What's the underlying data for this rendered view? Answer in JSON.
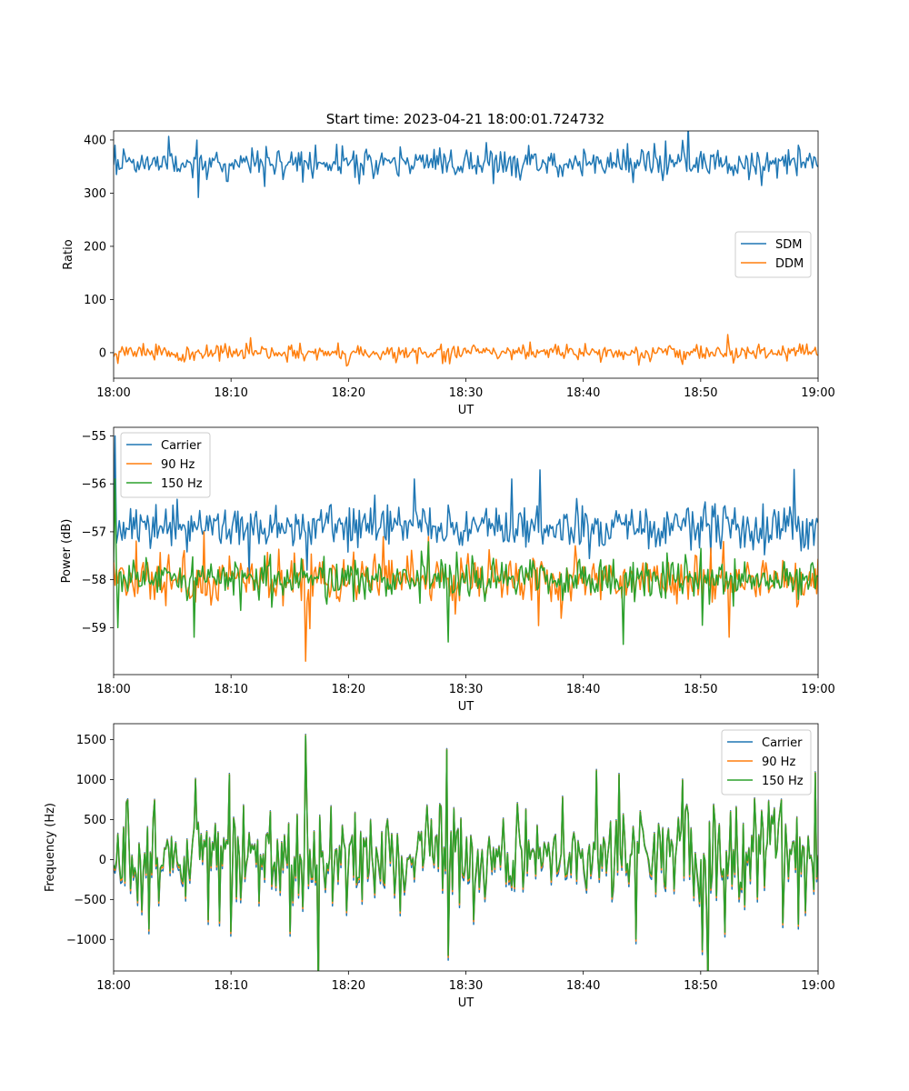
{
  "figure": {
    "title": "Start time: 2023-04-21 18:00:01.724732"
  },
  "chart_data": [
    {
      "type": "line",
      "xlabel": "UT",
      "ylabel": "Ratio",
      "xlim": [
        0,
        60
      ],
      "ylim": [
        -48,
        417
      ],
      "x_ticks": [
        {
          "value": 0,
          "label": "18:00"
        },
        {
          "value": 10,
          "label": "18:10"
        },
        {
          "value": 20,
          "label": "18:20"
        },
        {
          "value": 30,
          "label": "18:30"
        },
        {
          "value": 40,
          "label": "18:40"
        },
        {
          "value": 50,
          "label": "18:50"
        },
        {
          "value": 60,
          "label": "19:00"
        }
      ],
      "y_ticks": [
        {
          "value": 0,
          "label": "0"
        },
        {
          "value": 100,
          "label": "100"
        },
        {
          "value": 200,
          "label": "200"
        },
        {
          "value": 300,
          "label": "300"
        },
        {
          "value": 400,
          "label": "400"
        }
      ],
      "legend_position": "center-right",
      "grid": false,
      "series": [
        {
          "name": "SDM",
          "color": "#1f77b4",
          "center": 357,
          "spread": 14,
          "spikes": [
            [
              0.1,
              390
            ],
            [
              0.3,
              335
            ],
            [
              32.3,
              318
            ],
            [
              31.7,
              395
            ],
            [
              58.3,
              390
            ],
            [
              44.2,
              320
            ],
            [
              9.7,
              322
            ]
          ],
          "seed": 11
        },
        {
          "name": "DDM",
          "color": "#ff7f0e",
          "center": 0,
          "spread": 7,
          "spikes": [
            [
              11.7,
              28
            ],
            [
              52.3,
              34
            ],
            [
              19.8,
              -25
            ],
            [
              48.4,
              -22
            ],
            [
              0.4,
              -20
            ]
          ],
          "seed": 23
        }
      ]
    },
    {
      "type": "line",
      "xlabel": "UT",
      "ylabel": "Power (dB)",
      "xlim": [
        0,
        60
      ],
      "ylim": [
        -59.98,
        -54.82
      ],
      "x_ticks": [
        {
          "value": 0,
          "label": "18:00"
        },
        {
          "value": 10,
          "label": "18:10"
        },
        {
          "value": 20,
          "label": "18:20"
        },
        {
          "value": 30,
          "label": "18:30"
        },
        {
          "value": 40,
          "label": "18:40"
        },
        {
          "value": 50,
          "label": "18:50"
        },
        {
          "value": 60,
          "label": "19:00"
        }
      ],
      "y_ticks": [
        {
          "value": -59,
          "label": "−59"
        },
        {
          "value": -58,
          "label": "−58"
        },
        {
          "value": -57,
          "label": "−57"
        },
        {
          "value": -56,
          "label": "−56"
        },
        {
          "value": -55,
          "label": "−55"
        }
      ],
      "legend_position": "upper-left",
      "grid": false,
      "series": [
        {
          "name": "Carrier",
          "color": "#1f77b4",
          "center": -56.9,
          "spread": 0.22,
          "spikes": [
            [
              0.1,
              -55.0
            ],
            [
              33.9,
              -55.9
            ],
            [
              58.0,
              -55.7
            ],
            [
              25.6,
              -55.9
            ],
            [
              11.6,
              -57.9
            ],
            [
              16.5,
              -57.8
            ]
          ],
          "seed": 37
        },
        {
          "name": "90 Hz",
          "color": "#ff7f0e",
          "center": -58.0,
          "spread": 0.25,
          "spikes": [
            [
              16.4,
              -59.7
            ],
            [
              52.4,
              -59.2
            ],
            [
              7.7,
              -57.0
            ],
            [
              26.8,
              -57.1
            ]
          ],
          "seed": 41
        },
        {
          "name": "150 Hz",
          "color": "#2ca02c",
          "center": -57.95,
          "spread": 0.22,
          "spikes": [
            [
              0.1,
              -55.9
            ],
            [
              43.4,
              -59.35
            ],
            [
              6.9,
              -59.2
            ],
            [
              28.5,
              -59.3
            ],
            [
              50.1,
              -58.95
            ],
            [
              0.4,
              -59.0
            ]
          ],
          "seed": 53
        }
      ]
    },
    {
      "type": "line",
      "xlabel": "UT",
      "ylabel": "Frequency (Hz)",
      "xlim": [
        0,
        60
      ],
      "ylim": [
        -1395,
        1700
      ],
      "x_ticks": [
        {
          "value": 0,
          "label": "18:00"
        },
        {
          "value": 10,
          "label": "18:10"
        },
        {
          "value": 20,
          "label": "18:20"
        },
        {
          "value": 30,
          "label": "18:30"
        },
        {
          "value": 40,
          "label": "18:40"
        },
        {
          "value": 50,
          "label": "18:50"
        },
        {
          "value": 60,
          "label": "19:00"
        }
      ],
      "y_ticks": [
        {
          "value": -1000,
          "label": "−1000"
        },
        {
          "value": -500,
          "label": "−500"
        },
        {
          "value": 0,
          "label": "0"
        },
        {
          "value": 500,
          "label": "500"
        },
        {
          "value": 1000,
          "label": "1000"
        },
        {
          "value": 1500,
          "label": "1500"
        }
      ],
      "legend_position": "upper-right",
      "grid": false,
      "common_series": {
        "center": 30,
        "spread": 310,
        "seed": 71,
        "spikes": [
          [
            16.4,
            1550
          ],
          [
            28.4,
            1370
          ],
          [
            28.5,
            -1200
          ],
          [
            50.1,
            -1130
          ],
          [
            9.9,
            1060
          ],
          [
            41.1,
            1110
          ],
          [
            43.0,
            1060
          ],
          [
            59.8,
            1080
          ],
          [
            7.0,
            1000
          ],
          [
            48.4,
            990
          ],
          [
            10.0,
            -900
          ],
          [
            15.0,
            -900
          ]
        ]
      },
      "series": [
        {
          "name": "Carrier",
          "color": "#1f77b4",
          "offset": -60
        },
        {
          "name": "90 Hz",
          "color": "#ff7f0e",
          "offset": -25
        },
        {
          "name": "150 Hz",
          "color": "#2ca02c",
          "offset": 0
        }
      ]
    }
  ]
}
